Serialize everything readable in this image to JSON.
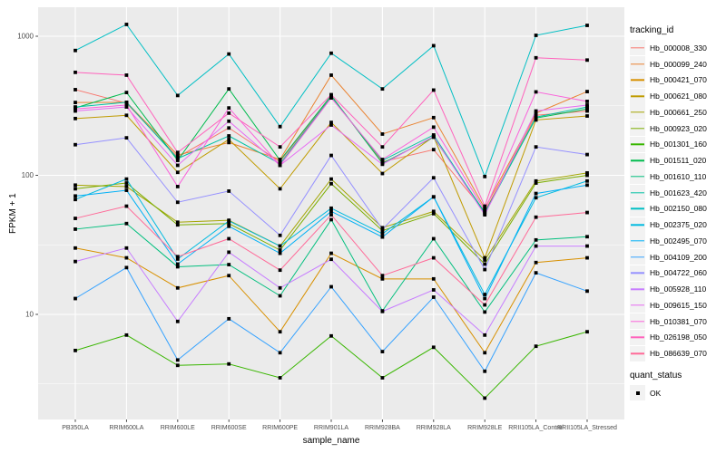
{
  "figure": {
    "y_axis": {
      "title": "FPKM + 1",
      "ticks": [
        "1000",
        "100",
        "10"
      ],
      "tick_values": [
        1000,
        100,
        10
      ],
      "minor_values": [
        316.23,
        31.62,
        3.162
      ]
    },
    "x_axis": {
      "title": "sample_name"
    },
    "legend": {
      "tracking_id_title": "tracking_id",
      "quant_status_title": "quant_status",
      "quant_items": [
        {
          "label": "OK"
        }
      ]
    },
    "colors": {
      "panel_bg": "#EBEBEB",
      "grid": "#FFFFFF",
      "axis_text": "#4D4D4D",
      "tick_mark": "#333333",
      "point": "#000000",
      "legend_key_bg": "#F2F2F2"
    }
  },
  "chart_data": {
    "type": "line",
    "title": "",
    "xlabel": "sample_name",
    "ylabel": "FPKM + 1",
    "y_scale": "log10",
    "ylim": [
      1.75,
      1620
    ],
    "grid": true,
    "legend_position": "right",
    "point_shape": "filled-black-square",
    "categories": [
      "PB350LA",
      "RRIM600LA",
      "RRIM600LE",
      "RRIM600SE",
      "RRIM600PE",
      "RRIM901LA",
      "RRIM928BA",
      "RRIM928LA",
      "RRIM928LE",
      "RRII105LA_Control",
      "RRII105LA_Stressed"
    ],
    "series": [
      {
        "name": "Hb_000008_330",
        "color": "#F8766D",
        "values": [
          413,
          330,
          135,
          219,
          125,
          370,
          125,
          153,
          55,
          270,
          290
        ]
      },
      {
        "name": "Hb_000099_240",
        "color": "#EA8331",
        "values": [
          334,
          335,
          140,
          172,
          130,
          525,
          198,
          260,
          58,
          280,
          400
        ]
      },
      {
        "name": "Hb_000421_070",
        "color": "#D89000",
        "values": [
          30,
          25.5,
          15.5,
          19,
          7.5,
          27.5,
          18,
          18,
          5.3,
          23.6,
          25.5
        ]
      },
      {
        "name": "Hb_000621_080",
        "color": "#C09B00",
        "values": [
          256,
          270,
          105,
          181,
          80,
          240,
          103,
          190,
          25.5,
          250,
          267
        ]
      },
      {
        "name": "Hb_000661_250",
        "color": "#A3A500",
        "values": [
          85,
          83,
          46,
          47.5,
          31,
          94,
          42,
          55,
          24.6,
          91,
          104
        ]
      },
      {
        "name": "Hb_000923_020",
        "color": "#7CAE00",
        "values": [
          80,
          88,
          44,
          45,
          29,
          87,
          40,
          53,
          23,
          88,
          100
        ]
      },
      {
        "name": "Hb_001301_160",
        "color": "#39B600",
        "values": [
          5.5,
          7.1,
          4.3,
          4.4,
          3.5,
          7.0,
          3.5,
          5.8,
          2.5,
          5.9,
          7.5
        ]
      },
      {
        "name": "Hb_001511_020",
        "color": "#00BB4E",
        "values": [
          305,
          394,
          128,
          418,
          128,
          375,
          122,
          188,
          54,
          258,
          300
        ]
      },
      {
        "name": "Hb_001610_110",
        "color": "#00BF7D",
        "values": [
          41,
          45,
          22,
          22.8,
          13.6,
          48,
          10.6,
          35,
          10.4,
          34.3,
          36.2
        ]
      },
      {
        "name": "Hb_001623_420",
        "color": "#00C1A3",
        "values": [
          310,
          335,
          132,
          192,
          121,
          365,
          128,
          195,
          53,
          262,
          310
        ]
      },
      {
        "name": "Hb_002150_080",
        "color": "#00BFC4",
        "values": [
          790,
          1216,
          375,
          745,
          224,
          755,
          418,
          855,
          98,
          1015,
          1197
        ]
      },
      {
        "name": "Hb_002375_020",
        "color": "#00BAE0",
        "values": [
          67,
          94,
          25,
          47,
          31,
          58,
          38,
          70,
          13.9,
          69,
          91
        ]
      },
      {
        "name": "Hb_002495_070",
        "color": "#00B0F6",
        "values": [
          71,
          78,
          23,
          43,
          27.5,
          55,
          36,
          70,
          13,
          74,
          85
        ]
      },
      {
        "name": "Hb_004109_200",
        "color": "#35A2FF",
        "values": [
          13,
          21.7,
          4.7,
          9.3,
          5.3,
          15.8,
          5.4,
          13.3,
          3.9,
          19.9,
          14.7
        ]
      },
      {
        "name": "Hb_004722_060",
        "color": "#9590FF",
        "values": [
          166,
          186,
          64,
          77,
          37,
          139,
          41,
          96,
          21,
          160,
          141
        ]
      },
      {
        "name": "Hb_005928_110",
        "color": "#C77CFF",
        "values": [
          24,
          30,
          8.9,
          28,
          15.5,
          24.9,
          10.5,
          15,
          7.1,
          31,
          31
        ]
      },
      {
        "name": "Hb_009615_150",
        "color": "#E76BF3",
        "values": [
          290,
          310,
          118,
          245,
          118,
          230,
          120,
          190,
          52,
          290,
          320
        ]
      },
      {
        "name": "Hb_010381_070",
        "color": "#FA62DB",
        "values": [
          300,
          320,
          83,
          305,
          118,
          360,
          130,
          222,
          56,
          398,
          340
        ]
      },
      {
        "name": "Hb_026198_050",
        "color": "#FF62BC",
        "values": [
          550,
          525,
          146,
          280,
          160,
          380,
          160,
          410,
          60,
          700,
          674
        ]
      },
      {
        "name": "Hb_086639_070",
        "color": "#FF6A98",
        "values": [
          49,
          60,
          26,
          35,
          20.8,
          52,
          19,
          25.5,
          11.7,
          50,
          54
        ]
      }
    ],
    "quant_status": {
      "label": "OK"
    }
  }
}
